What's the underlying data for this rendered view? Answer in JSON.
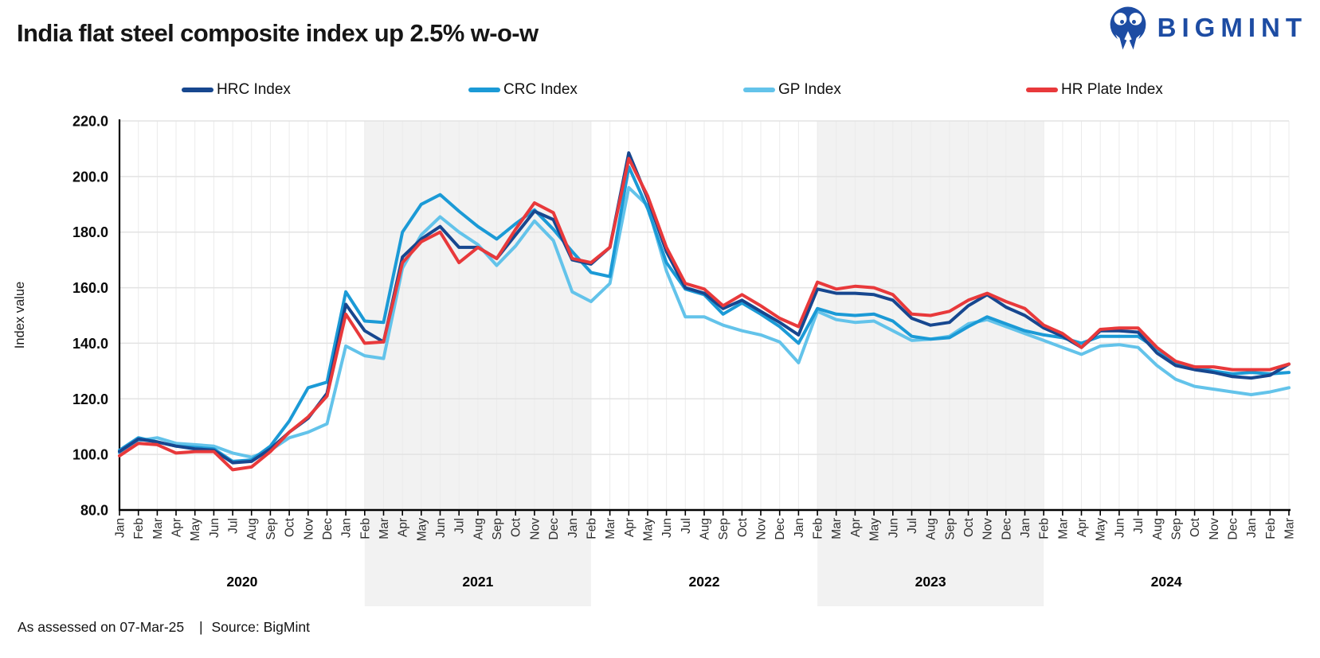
{
  "header": {
    "title": "India flat steel composite index up 2.5% w-o-w",
    "brand": "BIGMINT"
  },
  "footer": {
    "assessed": "As assessed on 07-Mar-25",
    "separator": "|",
    "source": "Source: BigMint"
  },
  "chart_data": {
    "type": "line",
    "title": "India flat steel composite index up 2.5% w-o-w",
    "xlabel": "",
    "ylabel": "Index value",
    "ylim": [
      80,
      220
    ],
    "yticks": [
      220,
      200,
      180,
      160,
      140,
      120,
      100,
      80
    ],
    "grid": true,
    "legend_position": "top",
    "band_color": "#F2F2F2",
    "x_unit": "month",
    "categories": [
      "Jan",
      "Feb",
      "Mar",
      "Apr",
      "May",
      "Jun",
      "Jul",
      "Aug",
      "Sep",
      "Oct",
      "Nov",
      "Dec",
      "Jan",
      "Feb",
      "Mar",
      "Apr",
      "May",
      "Jun",
      "Jul",
      "Aug",
      "Sep",
      "Oct",
      "Nov",
      "Dec",
      "Jan",
      "Feb",
      "Mar",
      "Apr",
      "May",
      "Jun",
      "Jul",
      "Aug",
      "Sep",
      "Oct",
      "Nov",
      "Dec",
      "Jan",
      "Feb",
      "Mar",
      "Apr",
      "May",
      "Jun",
      "Jul",
      "Aug",
      "Sep",
      "Oct",
      "Nov",
      "Dec",
      "Jan",
      "Feb",
      "Mar",
      "Apr",
      "May",
      "Jun",
      "Jul",
      "Aug",
      "Sep",
      "Oct",
      "Nov",
      "Dec",
      "Jan",
      "Feb",
      "Mar"
    ],
    "years": [
      {
        "label": "2020",
        "from": 0,
        "to": 13,
        "shaded": false
      },
      {
        "label": "2021",
        "from": 13,
        "to": 25,
        "shaded": true
      },
      {
        "label": "2022",
        "from": 25,
        "to": 37,
        "shaded": false
      },
      {
        "label": "2023",
        "from": 37,
        "to": 49,
        "shaded": true
      },
      {
        "label": "2024",
        "from": 49,
        "to": 62,
        "shaded": false
      }
    ],
    "series": [
      {
        "name": "HRC Index",
        "color": "#17478F",
        "values": [
          101,
          105.5,
          104.5,
          103,
          102,
          101.5,
          97,
          97.5,
          102,
          108,
          113,
          122,
          154,
          144.5,
          140.5,
          171,
          177.5,
          182,
          174.5,
          174.5,
          170.5,
          179,
          187.5,
          184.5,
          170,
          168.5,
          174.5,
          208.5,
          192,
          173,
          160,
          158,
          152.5,
          155.5,
          151.5,
          147.5,
          143,
          159.5,
          158,
          158,
          157.5,
          155.5,
          149,
          146.5,
          147.5,
          153.5,
          157.5,
          153,
          150,
          145.5,
          142.5,
          138.5,
          144.5,
          144.5,
          144,
          136.5,
          132,
          130.5,
          129.5,
          128,
          127.5,
          128.5,
          132.5
        ]
      },
      {
        "name": "CRC Index",
        "color": "#1B9AD6",
        "values": [
          101.5,
          106,
          104.5,
          103,
          102.5,
          102,
          97.5,
          98,
          103,
          112,
          124,
          126,
          158.5,
          148,
          147.5,
          180,
          190,
          193.5,
          187.5,
          182,
          177.5,
          183,
          188,
          181,
          173,
          165.5,
          164,
          203.5,
          188.5,
          169,
          159.5,
          157.5,
          150.5,
          154.5,
          150.5,
          146,
          140,
          152.5,
          150.5,
          150,
          150.5,
          148,
          142.5,
          141.5,
          142,
          146,
          149.5,
          147,
          144.5,
          143,
          142,
          140,
          142.5,
          142.5,
          142.5,
          138,
          133,
          131.5,
          130,
          129,
          129.5,
          129,
          129.5
        ]
      },
      {
        "name": "GP Index",
        "color": "#63C3EA",
        "values": [
          100.5,
          105,
          106,
          104,
          103.5,
          103,
          100.5,
          99,
          101.5,
          106,
          108,
          111,
          139,
          135.5,
          134.5,
          167,
          179,
          185.5,
          180,
          175.5,
          168,
          175,
          184,
          177,
          158.5,
          155,
          161.5,
          196,
          189.5,
          166,
          149.5,
          149.5,
          146.5,
          144.5,
          143,
          140.5,
          133,
          151.5,
          148.5,
          147.5,
          148,
          144.5,
          141,
          141.5,
          142.5,
          147,
          148.5,
          146,
          143.5,
          141,
          138.5,
          136,
          139,
          139.5,
          138.5,
          132,
          127,
          124.5,
          123.5,
          122.5,
          121.5,
          122.5,
          124
        ]
      },
      {
        "name": "HR Plate Index",
        "color": "#E8393B",
        "values": [
          99.5,
          104,
          103.5,
          100.5,
          101,
          101,
          94.5,
          95.5,
          101,
          108,
          113.5,
          121,
          150.5,
          140,
          140.5,
          169,
          176.5,
          180,
          169,
          174.5,
          170.5,
          181,
          190.5,
          187,
          170.5,
          169,
          174.5,
          206.5,
          193,
          174.5,
          161.5,
          159.5,
          153.5,
          157.5,
          153.5,
          149,
          146,
          162,
          159.5,
          160.5,
          160,
          157.5,
          150.5,
          150,
          151.5,
          155.5,
          158,
          155,
          152.5,
          146.5,
          143.5,
          138.5,
          145,
          145.5,
          145.5,
          138.5,
          133.5,
          131.5,
          131.5,
          130.5,
          130.5,
          130.5,
          132.5
        ]
      }
    ]
  }
}
